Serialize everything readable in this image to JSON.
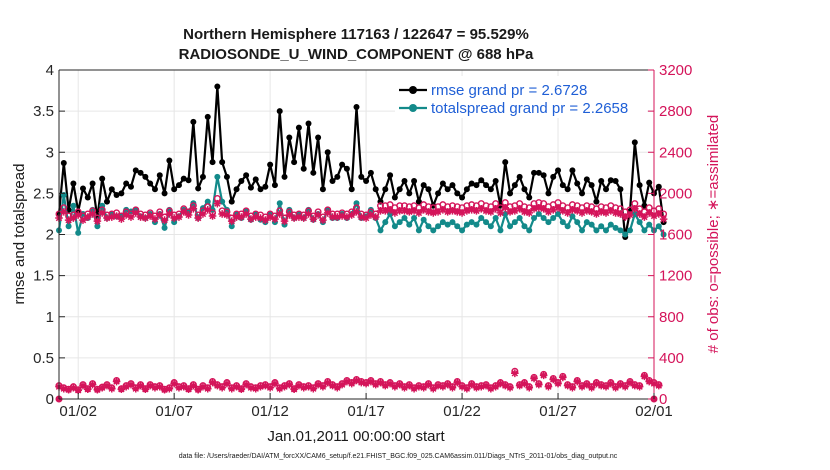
{
  "chart_data": {
    "type": "line",
    "title": "Northern Hemisphere 117163 / 122647 = 95.529%",
    "subtitle": "RADIOSONDE_U_WIND_COMPONENT @ 688 hPa",
    "xlabel": "Jan.01,2011 00:00:00 start",
    "ylabel": "rmse and totalspread",
    "y2label": "# of obs: o=possible; ∗=assimilated",
    "xlim": [
      0,
      124
    ],
    "ylim": [
      0,
      4
    ],
    "y2lim": [
      0,
      3200
    ],
    "x_ticks": [
      {
        "x": 4,
        "label": "01/02"
      },
      {
        "x": 24,
        "label": "01/07"
      },
      {
        "x": 44,
        "label": "01/12"
      },
      {
        "x": 64,
        "label": "01/17"
      },
      {
        "x": 84,
        "label": "01/22"
      },
      {
        "x": 104,
        "label": "01/27"
      },
      {
        "x": 124,
        "label": "02/01"
      }
    ],
    "y_ticks": [
      0,
      0.5,
      1,
      1.5,
      2,
      2.5,
      3,
      3.5,
      4
    ],
    "y_tick_labels": [
      "0",
      "0.5",
      "1",
      "1.5",
      "2",
      "2.5",
      "3",
      "3.5",
      "4"
    ],
    "y2_ticks": [
      0,
      400,
      800,
      1200,
      1600,
      2000,
      2400,
      2800,
      3200
    ],
    "y2_tick_labels": [
      "0",
      "400",
      "800",
      "1200",
      "1600",
      "2000",
      "2400",
      "2800",
      "3200"
    ],
    "legend": [
      {
        "label": "rmse grand pr = 2.6728",
        "color": "#000000"
      },
      {
        "label": "totalspread grand pr = 2.2658",
        "color": "#138a8a"
      }
    ],
    "series": [
      {
        "name": "rmse",
        "axis": "left",
        "color": "#000000",
        "values": [
          2.25,
          2.87,
          2.3,
          2.62,
          2.28,
          2.56,
          2.45,
          2.62,
          2.2,
          2.68,
          2.4,
          2.55,
          2.48,
          2.5,
          2.62,
          2.58,
          2.78,
          2.75,
          2.7,
          2.62,
          2.55,
          2.72,
          2.5,
          2.9,
          2.55,
          2.6,
          2.68,
          2.66,
          3.37,
          2.56,
          2.7,
          3.43,
          2.88,
          3.8,
          2.88,
          2.7,
          2.4,
          2.55,
          2.65,
          2.72,
          2.57,
          2.67,
          2.55,
          2.58,
          2.85,
          2.6,
          3.5,
          2.7,
          3.18,
          2.88,
          3.3,
          2.8,
          3.35,
          2.75,
          3.18,
          2.55,
          3.0,
          2.65,
          2.7,
          2.85,
          2.8,
          2.55,
          3.55,
          2.7,
          2.65,
          2.75,
          2.55,
          2.4,
          2.55,
          2.72,
          2.45,
          2.55,
          2.65,
          2.5,
          2.65,
          2.4,
          2.6,
          2.55,
          2.35,
          2.5,
          2.62,
          2.55,
          2.6,
          2.5,
          2.45,
          2.55,
          2.62,
          2.6,
          2.66,
          2.6,
          2.55,
          2.65,
          2.35,
          2.88,
          2.5,
          2.6,
          2.7,
          2.55,
          2.45,
          2.75,
          2.75,
          2.72,
          2.5,
          2.7,
          2.78,
          2.6,
          2.55,
          2.78,
          2.62,
          2.5,
          2.67,
          2.6,
          2.4,
          2.65,
          2.55,
          2.66,
          2.65,
          2.55,
          1.97,
          2.28,
          3.12,
          2.6,
          2.35,
          2.63,
          2.5,
          2.58,
          2.15
        ]
      },
      {
        "name": "totalspread",
        "axis": "left",
        "color": "#138a8a",
        "values": [
          2.05,
          2.48,
          2.1,
          2.35,
          2.02,
          2.25,
          2.2,
          2.3,
          2.1,
          2.35,
          2.2,
          2.25,
          2.22,
          2.22,
          2.3,
          2.28,
          2.3,
          2.22,
          2.2,
          2.25,
          2.15,
          2.25,
          2.08,
          2.3,
          2.15,
          2.22,
          2.3,
          2.28,
          2.38,
          2.2,
          2.32,
          2.4,
          2.3,
          2.7,
          2.4,
          2.3,
          2.1,
          2.25,
          2.2,
          2.28,
          2.18,
          2.25,
          2.18,
          2.15,
          2.25,
          2.15,
          2.38,
          2.12,
          2.3,
          2.2,
          2.25,
          2.2,
          2.3,
          2.18,
          2.25,
          2.15,
          2.3,
          2.2,
          2.2,
          2.25,
          2.2,
          2.25,
          2.38,
          2.2,
          2.22,
          2.3,
          2.2,
          2.05,
          2.15,
          2.25,
          2.1,
          2.15,
          2.2,
          2.12,
          2.2,
          2.05,
          2.18,
          2.1,
          2.05,
          2.1,
          2.15,
          2.12,
          2.15,
          2.1,
          2.05,
          2.12,
          2.15,
          2.12,
          2.2,
          2.15,
          2.1,
          2.2,
          2.05,
          2.25,
          2.1,
          2.15,
          2.2,
          2.1,
          2.05,
          2.2,
          2.25,
          2.2,
          2.15,
          2.2,
          2.25,
          2.15,
          2.1,
          2.22,
          2.15,
          2.05,
          2.15,
          2.12,
          2.05,
          2.1,
          2.05,
          2.12,
          2.08,
          2.05,
          2.0,
          2.05,
          2.25,
          2.15,
          2.05,
          2.12,
          2.05,
          2.1,
          2.0
        ]
      },
      {
        "name": "obs possible",
        "axis": "right",
        "color": "#d4145a",
        "marker": "o",
        "values": [
          1800,
          1860,
          1780,
          1790,
          1820,
          1780,
          1800,
          1830,
          1760,
          1840,
          1790,
          1800,
          1810,
          1780,
          1820,
          1800,
          1840,
          1800,
          1790,
          1810,
          1780,
          1820,
          1770,
          1830,
          1790,
          1800,
          1850,
          1820,
          1880,
          1790,
          1830,
          1870,
          1810,
          1950,
          1830,
          1820,
          1760,
          1800,
          1800,
          1830,
          1780,
          1800,
          1790,
          1770,
          1800,
          1780,
          1830,
          1760,
          1820,
          1790,
          1800,
          1790,
          1830,
          1780,
          1820,
          1770,
          1840,
          1800,
          1800,
          1810,
          1800,
          1820,
          1860,
          1800,
          1790,
          1820,
          1800,
          1880,
          1880,
          1890,
          1860,
          1880,
          1880,
          1870,
          1880,
          1860,
          1890,
          1870,
          1860,
          1870,
          1890,
          1870,
          1880,
          1870,
          1860,
          1880,
          1890,
          1880,
          1900,
          1880,
          1870,
          1900,
          1860,
          1910,
          1870,
          1880,
          1900,
          1870,
          1860,
          1900,
          1910,
          1900,
          1870,
          1890,
          1910,
          1880,
          1860,
          1890,
          1880,
          1860,
          1880,
          1870,
          1850,
          1870,
          1860,
          1880,
          1860,
          1850,
          1820,
          1840,
          1900,
          1850,
          1820,
          1860,
          1830,
          1850,
          1800
        ]
      },
      {
        "name": "obs assimilated",
        "axis": "right",
        "color": "#d4145a",
        "marker": "*",
        "values": [
          1760,
          1820,
          1740,
          1760,
          1790,
          1740,
          1770,
          1800,
          1730,
          1810,
          1760,
          1770,
          1780,
          1750,
          1790,
          1770,
          1810,
          1770,
          1760,
          1780,
          1750,
          1790,
          1740,
          1800,
          1760,
          1770,
          1820,
          1790,
          1850,
          1760,
          1800,
          1840,
          1780,
          1900,
          1800,
          1790,
          1730,
          1770,
          1770,
          1800,
          1750,
          1770,
          1760,
          1740,
          1770,
          1750,
          1800,
          1730,
          1790,
          1760,
          1770,
          1760,
          1800,
          1750,
          1790,
          1740,
          1810,
          1770,
          1770,
          1780,
          1770,
          1790,
          1820,
          1770,
          1760,
          1790,
          1770,
          1830,
          1830,
          1840,
          1810,
          1830,
          1830,
          1820,
          1830,
          1810,
          1840,
          1820,
          1810,
          1820,
          1840,
          1820,
          1830,
          1820,
          1810,
          1830,
          1840,
          1830,
          1850,
          1830,
          1820,
          1850,
          1810,
          1860,
          1820,
          1830,
          1850,
          1820,
          1810,
          1850,
          1860,
          1850,
          1820,
          1840,
          1860,
          1830,
          1810,
          1840,
          1830,
          1810,
          1830,
          1820,
          1800,
          1820,
          1810,
          1830,
          1810,
          1800,
          1770,
          1790,
          1850,
          1800,
          1770,
          1810,
          1780,
          1800,
          1750
        ]
      },
      {
        "name": "obs possible (lower)",
        "axis": "right",
        "color": "#d4145a",
        "marker": "o",
        "values": [
          130,
          110,
          95,
          120,
          90,
          140,
          100,
          150,
          95,
          115,
          140,
          110,
          180,
          100,
          130,
          150,
          110,
          140,
          100,
          140,
          120,
          130,
          95,
          110,
          160,
          120,
          130,
          100,
          140,
          95,
          130,
          110,
          170,
          140,
          120,
          160,
          110,
          130,
          100,
          150,
          120,
          110,
          130,
          140,
          120,
          160,
          110,
          130,
          150,
          100,
          140,
          120,
          130,
          110,
          150,
          130,
          170,
          140,
          120,
          150,
          180,
          160,
          190,
          170,
          160,
          180,
          150,
          170,
          140,
          160,
          130,
          150,
          120,
          140,
          110,
          130,
          120,
          150,
          110,
          140,
          130,
          150,
          120,
          170,
          130,
          110,
          150,
          120,
          130,
          140,
          110,
          130,
          160,
          140,
          120,
          270,
          140,
          160,
          120,
          210,
          150,
          240,
          130,
          200,
          160,
          220,
          140,
          120,
          180,
          130,
          150,
          120,
          160,
          140,
          130,
          160,
          120,
          150,
          130,
          170,
          140,
          130,
          230,
          180,
          160,
          140
        ]
      },
      {
        "name": "obs assimilated (lower)",
        "axis": "right",
        "color": "#d4145a",
        "marker": "*",
        "values": [
          120,
          100,
          90,
          110,
          85,
          130,
          95,
          140,
          90,
          110,
          130,
          100,
          170,
          95,
          120,
          140,
          100,
          130,
          95,
          130,
          110,
          120,
          90,
          100,
          150,
          110,
          120,
          95,
          130,
          90,
          120,
          100,
          160,
          130,
          110,
          150,
          100,
          120,
          95,
          140,
          110,
          100,
          120,
          130,
          110,
          150,
          100,
          120,
          140,
          95,
          130,
          110,
          120,
          100,
          140,
          120,
          160,
          130,
          110,
          140,
          170,
          150,
          180,
          160,
          150,
          170,
          140,
          160,
          130,
          150,
          120,
          140,
          110,
          130,
          100,
          120,
          110,
          140,
          100,
          130,
          120,
          140,
          110,
          160,
          120,
          100,
          140,
          110,
          120,
          130,
          100,
          120,
          150,
          130,
          110,
          250,
          130,
          150,
          110,
          200,
          140,
          230,
          120,
          190,
          150,
          210,
          130,
          110,
          170,
          120,
          140,
          110,
          150,
          130,
          120,
          150,
          110,
          140,
          120,
          160,
          130,
          120,
          220,
          170,
          150,
          130
        ]
      }
    ],
    "left_axis_color": "#1a1a1a",
    "right_axis_color": "#d4145a",
    "footer": "data file: /Users/raeder/DAI/ATM_forcXX/CAM6_setup/f.e21.FHIST_BGC.f09_025.CAM6assim.011/Diags_NTrS_2011-01/obs_diag_output.nc"
  }
}
